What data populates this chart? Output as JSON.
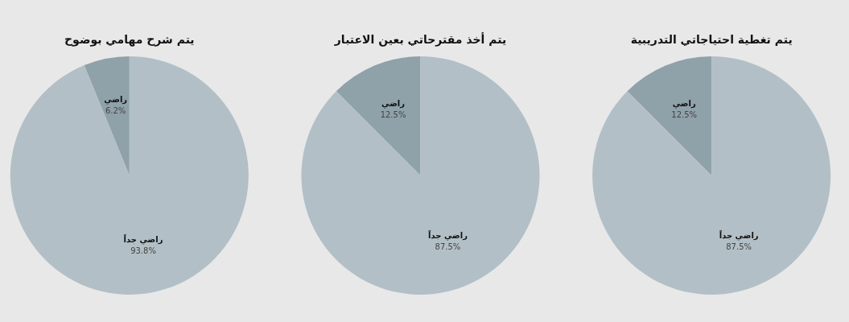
{
  "chart_data": [
    {
      "type": "pie",
      "title": "يتم شرح مهامي بوضوح",
      "categories": [
        "راضي",
        "راضي جداً"
      ],
      "values": [
        6.2,
        93.8
      ],
      "value_labels": [
        "6.2%",
        "93.8%"
      ],
      "colors": [
        "#8fa1a9",
        "#b2bfc6"
      ]
    },
    {
      "type": "pie",
      "title": "يتم أخذ مقترحاتي بعين الاعتبار",
      "categories": [
        "راضي",
        "راضي جداً"
      ],
      "values": [
        12.5,
        87.5
      ],
      "value_labels": [
        "12.5%",
        "87.5%"
      ],
      "colors": [
        "#8fa1a9",
        "#b2bfc6"
      ]
    },
    {
      "type": "pie",
      "title": "يتم تغطية احتياجاتي التدريبية",
      "categories": [
        "راضي",
        "راضي جداً"
      ],
      "values": [
        12.5,
        87.5
      ],
      "value_labels": [
        "12.5%",
        "87.5%"
      ],
      "colors": [
        "#8fa1a9",
        "#b2bfc6"
      ]
    }
  ]
}
